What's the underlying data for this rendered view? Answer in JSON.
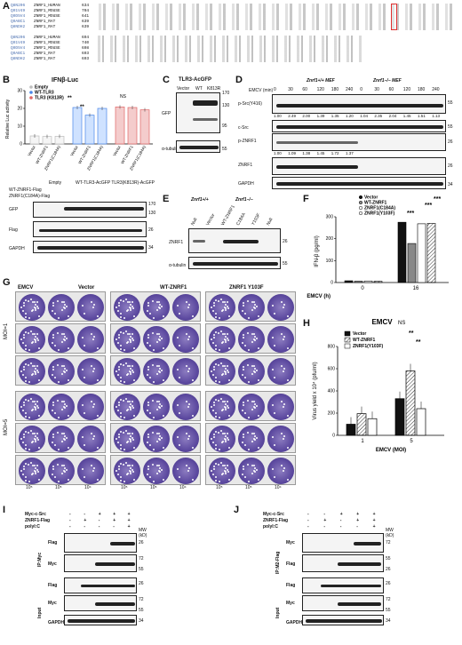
{
  "panels": {
    "A": "A",
    "B": "B",
    "C": "C",
    "D": "D",
    "E": "E",
    "F": "F",
    "G": "G",
    "H": "H",
    "I": "I",
    "J": "J"
  },
  "A": {
    "rows1": [
      {
        "name": "Q8N206",
        "species": "ZNRF1_HUMAN",
        "start": "634"
      },
      {
        "name": "Q91V49",
        "species": "ZNRF1_MOUSE",
        "start": "704"
      },
      {
        "name": "Q9D5V4",
        "species": "ZNRF1_MOUSE",
        "start": "641"
      },
      {
        "name": "Q9ABC1",
        "species": "ZNRF1_RAT",
        "start": "639"
      },
      {
        "name": "Q8NDH2",
        "species": "ZNRF1_RAT",
        "start": "639"
      }
    ],
    "rows2": [
      {
        "name": "Q8N206",
        "species": "ZNRF1_HUMAN",
        "start": "694"
      },
      {
        "name": "Q91V49",
        "species": "ZNRF1_MOUSE",
        "start": "740"
      },
      {
        "name": "Q9D5V4",
        "species": "ZNRF1_MOUSE",
        "start": "698"
      },
      {
        "name": "Q9ABC1",
        "species": "ZNRF1_RAT",
        "start": "693"
      },
      {
        "name": "Q8NDH2",
        "species": "ZNRF1_RAT",
        "start": "693"
      }
    ]
  },
  "B": {
    "title": "IFNβ-Luc",
    "ylabel": "Relative Luc activity",
    "legend": [
      "Empty",
      "WT-TLR3",
      "TLR3 (K813R)"
    ],
    "sig": [
      "**",
      "**",
      "NS"
    ],
    "xlabels": [
      "Vector",
      "WT-ZNRF1",
      "ZNRF1(C184A)",
      "Vector",
      "WT-ZNRF1",
      "ZNRF1(C184A)",
      "Vector",
      "WT-ZNRF1",
      "ZNRF1(C184A)"
    ],
    "blot_header1": "Empty",
    "blot_header2": "WT-TLR3-AcGFP TLR3(K813R)-AcGFP",
    "row_labels": [
      "WT-ZNRF1-Flag",
      "ZNRF1(C184A)-Flag"
    ],
    "blots": [
      "GFP",
      "Flag",
      "GAPDH"
    ],
    "mw": [
      "170",
      "130",
      "26",
      "34"
    ]
  },
  "C": {
    "title": "TLR3-AcGFP",
    "lanes": [
      "Vector",
      "WT",
      "K813R"
    ],
    "blots": [
      "GFP",
      "α-tubulin"
    ],
    "mw": [
      "170",
      "130",
      "95",
      "55"
    ]
  },
  "D": {
    "emcv": "EMCV (min)",
    "group1": "Znrf1+/+ MEF",
    "group2": "Znrf1−/− MEF",
    "times": [
      "0",
      "30",
      "60",
      "120",
      "180",
      "240",
      "0",
      "30",
      "60",
      "120",
      "180",
      "240"
    ],
    "blots": [
      "p-Src(Y416)",
      "c-Src",
      "p-ZNRF1",
      "ZNRF1",
      "GAPDH"
    ],
    "psrc_vals": [
      "1.00",
      "2.49",
      "2.00",
      "1.39",
      "1.35",
      "1.20",
      "1.04",
      "2.35",
      "2.04",
      "1.45",
      "1.51",
      "1.13"
    ],
    "pznrf1_vals": [
      "1.00",
      "1.09",
      "1.38",
      "1.45",
      "1.72",
      "1.37"
    ],
    "mw": [
      "55",
      "55",
      "26",
      "26",
      "34"
    ]
  },
  "E": {
    "group1": "Znrf1+/+",
    "group2": "Znrf1−/−",
    "lanes": [
      "Null",
      "Vector",
      "WT-ZNRF1",
      "C184A",
      "Y103F",
      "Null"
    ],
    "blots": [
      "ZNRF1",
      "α-tubulin"
    ],
    "mw": [
      "26",
      "55"
    ]
  },
  "F": {
    "legend": [
      "Vector",
      "WT-ZNRF1",
      "ZNRF1(C184A)",
      "ZNRF1(Y103F)"
    ],
    "ylabel": "IFN-β (pg/ml)",
    "xlabel": "EMCV (h)",
    "xticks": [
      "0",
      "16"
    ],
    "yticks": [
      "0",
      "100",
      "200",
      "300"
    ],
    "sig": [
      "***",
      "***",
      "***"
    ]
  },
  "G": {
    "header": "EMCV",
    "cols": [
      "Vector",
      "WT-ZNRF1",
      "ZNRF1 Y103F"
    ],
    "moi": [
      "MOI=1",
      "MOI=5"
    ],
    "dilutions": [
      "10⁵",
      "10⁵",
      "10⁴",
      "10⁵",
      "10⁵",
      "10⁴",
      "10⁵",
      "10⁵",
      "10⁴"
    ]
  },
  "H": {
    "title": "EMCV",
    "ns": "NS",
    "legend": [
      "Vector",
      "WT-ZNRF1",
      "ZNRF1(Y103F)"
    ],
    "ylabel": "Virus yield x 10⁴ (pfu/ml)",
    "xlabel": "EMCV (MOI)",
    "xticks": [
      "1",
      "5"
    ],
    "yticks": [
      "0",
      "200",
      "400",
      "600",
      "800"
    ],
    "sig": [
      "**",
      "**"
    ]
  },
  "I": {
    "row_labels": [
      "Myc-c-Src",
      "ZNRF1-Flag",
      "polyI:C"
    ],
    "side1": "IP:Myc",
    "side2": "Input",
    "blots_ip": [
      "Flag",
      "Myc"
    ],
    "blots_in": [
      "Flag",
      "Myc",
      "GAPDH"
    ],
    "mw": [
      "26",
      "72",
      "55",
      "26",
      "72",
      "55",
      "34"
    ]
  },
  "J": {
    "row_labels": [
      "Myc-c-Src",
      "ZNRF1-Flag",
      "polyI:C"
    ],
    "side1": "IP:M2-Flag",
    "side2": "Input",
    "blots_ip": [
      "Myc",
      "Flag"
    ],
    "blots_in": [
      "Flag",
      "Myc",
      "GAPDH"
    ],
    "mw": [
      "72",
      "55",
      "26",
      "26",
      "72",
      "55",
      "34"
    ]
  },
  "chart_data": [
    {
      "type": "bar",
      "title": "IFNβ-Luc",
      "ylabel": "Relative Luc activity",
      "ylim": [
        0,
        30
      ],
      "categories": [
        "Vector",
        "WT-ZNRF1",
        "ZNRF1(C184A)"
      ],
      "series": [
        {
          "name": "Empty",
          "values": [
            4.5,
            4.2,
            4.3
          ]
        },
        {
          "name": "WT-TLR3",
          "values": [
            20.5,
            16.2,
            20.0
          ]
        },
        {
          "name": "TLR3 (K813R)",
          "values": [
            20.8,
            20.5,
            19.2
          ]
        }
      ]
    },
    {
      "type": "bar",
      "ylabel": "IFN-β (pg/ml)",
      "xlabel": "EMCV (h)",
      "ylim": [
        0,
        300
      ],
      "categories": [
        "0",
        "16"
      ],
      "series": [
        {
          "name": "Vector",
          "values": [
            8,
            275
          ]
        },
        {
          "name": "WT-ZNRF1",
          "values": [
            6,
            178
          ]
        },
        {
          "name": "ZNRF1(C184A)",
          "values": [
            7,
            268
          ]
        },
        {
          "name": "ZNRF1(Y103F)",
          "values": [
            6,
            270
          ]
        }
      ]
    },
    {
      "type": "bar",
      "title": "EMCV",
      "ylabel": "Virus yield x 10⁴ (pfu/ml)",
      "xlabel": "EMCV (MOI)",
      "ylim": [
        0,
        800
      ],
      "categories": [
        "1",
        "5"
      ],
      "series": [
        {
          "name": "Vector",
          "values": [
            100,
            330
          ]
        },
        {
          "name": "WT-ZNRF1",
          "values": [
            195,
            580
          ]
        },
        {
          "name": "ZNRF1(Y103F)",
          "values": [
            150,
            240
          ]
        }
      ]
    }
  ]
}
